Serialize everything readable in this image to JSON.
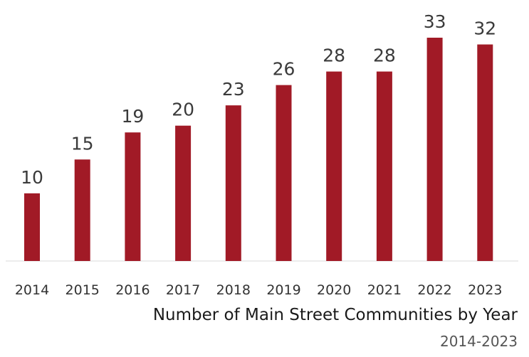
{
  "chart_data": {
    "type": "bar",
    "title": "Number of Main Street Communities by Year",
    "subtitle": "2014-2023",
    "categories": [
      "2014",
      "2015",
      "2016",
      "2017",
      "2018",
      "2019",
      "2020",
      "2021",
      "2022",
      "2023"
    ],
    "values": [
      10,
      15,
      19,
      20,
      23,
      26,
      28,
      28,
      33,
      32
    ],
    "xlabel": "",
    "ylabel": "",
    "ylim": [
      0,
      33
    ],
    "grid": false,
    "legend": "none",
    "bar_color": "#a11a26",
    "axis_color": "#d9d9d9"
  }
}
